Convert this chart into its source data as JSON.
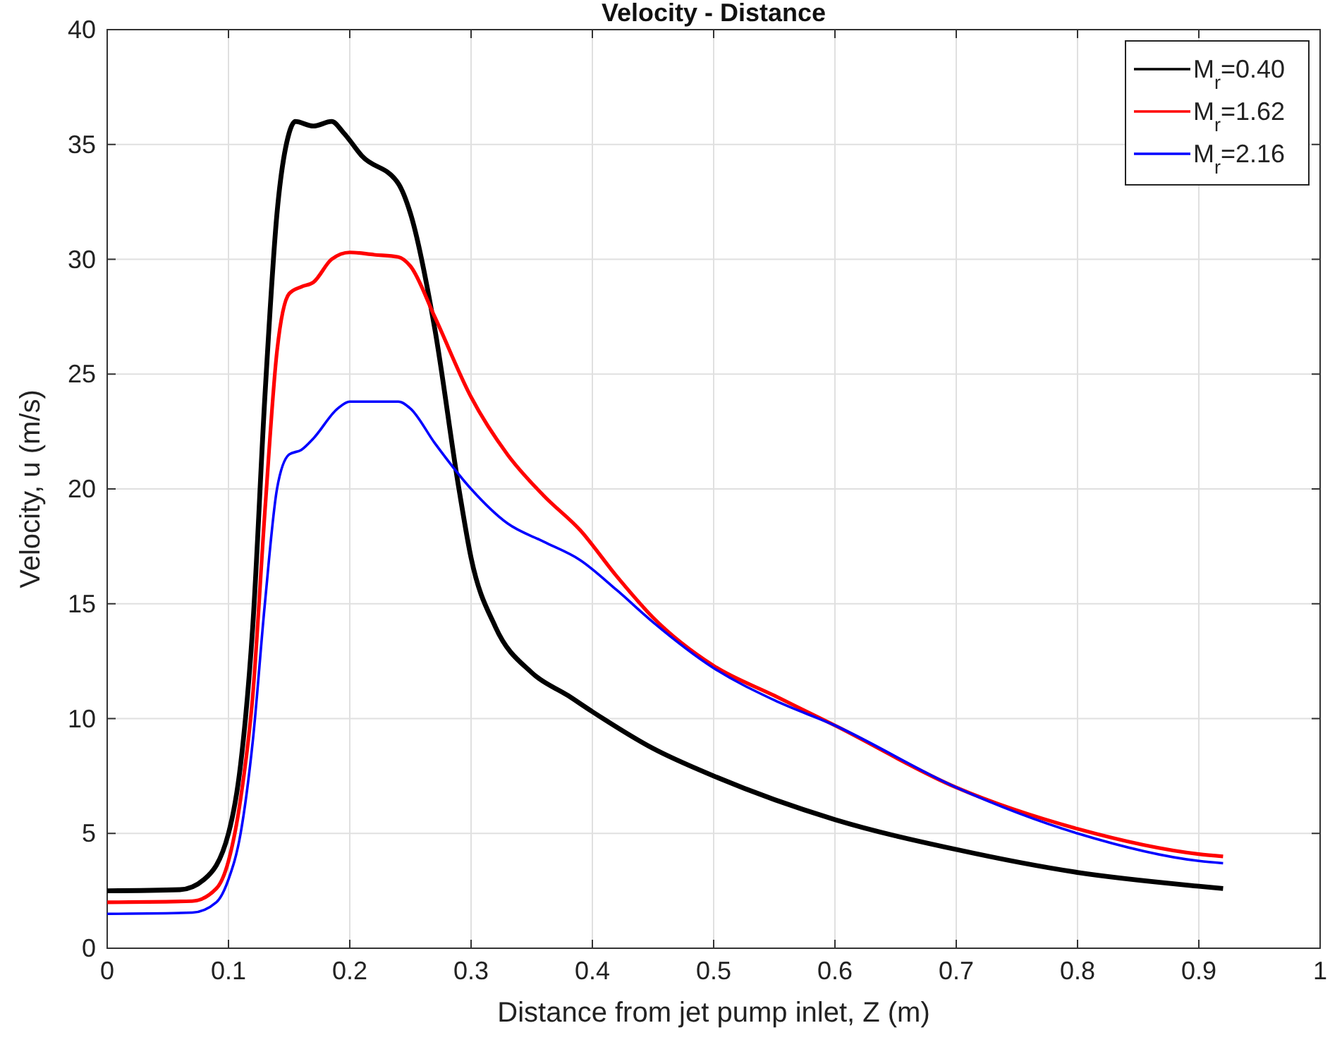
{
  "chart_data": {
    "type": "line",
    "title": "Velocity - Distance",
    "xlabel": "Distance from jet pump inlet, Z (m)",
    "ylabel": "Velocity, u (m/s)",
    "xlim": [
      0,
      1
    ],
    "xticks": [
      0,
      0.1,
      0.2,
      0.3,
      0.4,
      0.5,
      0.6,
      0.7,
      0.8,
      0.9,
      1
    ],
    "ylim": [
      0,
      40
    ],
    "yticks": [
      0,
      5,
      10,
      15,
      20,
      25,
      30,
      35,
      40
    ],
    "grid": true,
    "legend": "top right",
    "line_style": "solid",
    "marker": "none",
    "series": [
      {
        "name": "M$_{r}$=0.40",
        "color": "#000000",
        "x": [
          0,
          0.06,
          0.08,
          0.1,
          0.11,
          0.12,
          0.13,
          0.14,
          0.15,
          0.155,
          0.17,
          0.185,
          0.195,
          0.21,
          0.24,
          0.25,
          0.27,
          0.29,
          0.3,
          0.32,
          0.35,
          0.38,
          0.4,
          0.45,
          0.5,
          0.6,
          0.7,
          0.8,
          0.9,
          0.92
        ],
        "values": [
          2.5,
          2.55,
          3.0,
          5,
          8,
          14,
          24,
          32,
          35.5,
          36,
          35.8,
          36,
          35.5,
          34.5,
          33.3,
          32,
          27,
          20,
          17,
          14,
          12,
          11,
          10.3,
          8.7,
          7.5,
          5.6,
          4.3,
          3.3,
          2.7,
          2.6
        ]
      },
      {
        "name": "M$_{r}$=1.62",
        "color": "#ff0000",
        "x": [
          0,
          0.07,
          0.09,
          0.1,
          0.11,
          0.12,
          0.13,
          0.14,
          0.15,
          0.16,
          0.17,
          0.185,
          0.2,
          0.22,
          0.24,
          0.25,
          0.27,
          0.3,
          0.33,
          0.36,
          0.39,
          0.42,
          0.45,
          0.5,
          0.55,
          0.6,
          0.7,
          0.8,
          0.9,
          0.92
        ],
        "values": [
          2,
          2.05,
          2.6,
          3.8,
          6.5,
          11,
          19,
          26,
          28.5,
          28.8,
          29,
          30,
          30.3,
          30.2,
          30.1,
          29.7,
          27.5,
          24,
          21.5,
          19.7,
          18.2,
          16.2,
          14.4,
          12.3,
          11,
          9.7,
          7,
          5.2,
          4.1,
          4.0
        ]
      },
      {
        "name": "M$_{r}$=2.16",
        "color": "#0000ff",
        "x": [
          0,
          0.07,
          0.09,
          0.1,
          0.11,
          0.12,
          0.13,
          0.14,
          0.15,
          0.16,
          0.17,
          0.19,
          0.2,
          0.24,
          0.25,
          0.27,
          0.3,
          0.33,
          0.36,
          0.39,
          0.42,
          0.45,
          0.5,
          0.55,
          0.6,
          0.7,
          0.8,
          0.9,
          0.92
        ],
        "values": [
          1.5,
          1.55,
          2.0,
          3,
          5,
          9,
          15,
          20,
          21.5,
          21.7,
          22.2,
          23.5,
          23.8,
          23.8,
          23.5,
          22,
          20,
          18.5,
          17.7,
          16.9,
          15.6,
          14.2,
          12.2,
          10.8,
          9.7,
          7,
          5,
          3.8,
          3.7
        ]
      }
    ]
  }
}
